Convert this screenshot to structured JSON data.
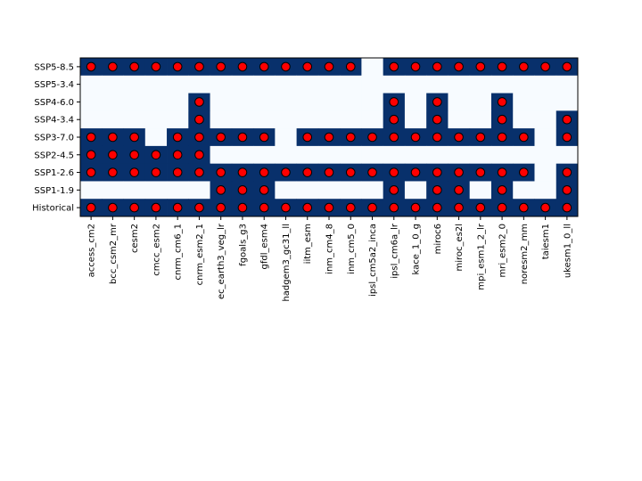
{
  "chart_data": {
    "type": "heatmap",
    "title": "",
    "xlabel": "",
    "ylabel": "",
    "x": [
      "access_cm2",
      "bcc_csm2_mr",
      "cesm2",
      "cmcc_esm2",
      "cnrm_cm6_1",
      "cnrm_esm2_1",
      "ec_earth3_veg_lr",
      "fgoals_g3",
      "gfdl_esm4",
      "hadgem3_gc31_ll",
      "iitm_esm",
      "inm_cm4_8",
      "inm_cm5_0",
      "ipsl_cm5a2_inca",
      "ipsl_cm6a_lr",
      "kace_1_0_g",
      "miroc6",
      "miroc_es2l",
      "mpi_esm1_2_lr",
      "mri_esm2_0",
      "noresm2_mm",
      "taiesm1",
      "ukesm1_0_ll"
    ],
    "y": [
      "SSP5-8.5",
      "SSP5-3.4",
      "SSP4-6.0",
      "SSP4-3.4",
      "SSP3-7.0",
      "SSP2-4.5",
      "SSP1-2.6",
      "SSP1-1.9",
      "Historical"
    ],
    "values": [
      [
        1,
        1,
        1,
        1,
        1,
        1,
        1,
        1,
        1,
        1,
        1,
        1,
        1,
        0,
        1,
        1,
        1,
        1,
        1,
        1,
        1,
        1,
        1
      ],
      [
        0,
        0,
        0,
        0,
        0,
        0,
        0,
        0,
        0,
        0,
        0,
        0,
        0,
        0,
        0,
        0,
        0,
        0,
        0,
        0,
        0,
        0,
        0
      ],
      [
        0,
        0,
        0,
        0,
        0,
        1,
        0,
        0,
        0,
        0,
        0,
        0,
        0,
        0,
        1,
        0,
        1,
        0,
        0,
        1,
        0,
        0,
        0
      ],
      [
        0,
        0,
        0,
        0,
        0,
        1,
        0,
        0,
        0,
        0,
        0,
        0,
        0,
        0,
        1,
        0,
        1,
        0,
        0,
        1,
        0,
        0,
        1
      ],
      [
        1,
        1,
        1,
        0,
        1,
        1,
        1,
        1,
        1,
        0,
        1,
        1,
        1,
        1,
        1,
        1,
        1,
        1,
        1,
        1,
        1,
        0,
        1
      ],
      [
        1,
        1,
        1,
        1,
        1,
        1,
        0,
        0,
        0,
        0,
        0,
        0,
        0,
        0,
        0,
        0,
        0,
        0,
        0,
        0,
        0,
        0,
        0
      ],
      [
        1,
        1,
        1,
        1,
        1,
        1,
        1,
        1,
        1,
        1,
        1,
        1,
        1,
        1,
        1,
        1,
        1,
        1,
        1,
        1,
        1,
        0,
        1
      ],
      [
        0,
        0,
        0,
        0,
        0,
        0,
        1,
        1,
        1,
        0,
        0,
        0,
        0,
        0,
        1,
        0,
        1,
        1,
        0,
        1,
        0,
        0,
        1
      ],
      [
        1,
        1,
        1,
        1,
        1,
        1,
        1,
        1,
        1,
        1,
        1,
        1,
        1,
        1,
        1,
        1,
        1,
        1,
        1,
        1,
        1,
        1,
        1
      ]
    ],
    "marker": "circle",
    "colors": {
      "present": "#08306b",
      "absent": "#f7fbff",
      "marker_fill": "#ff0000",
      "marker_edge": "#000000",
      "axis": "#000000"
    },
    "grid": false,
    "legend": "none"
  }
}
